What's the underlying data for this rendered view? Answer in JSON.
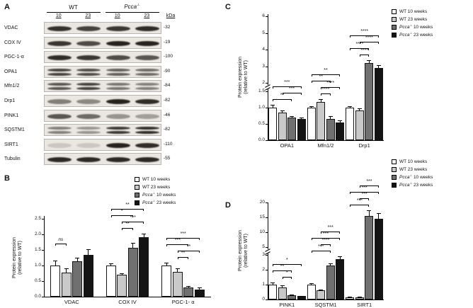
{
  "panels": {
    "a_label": "A",
    "b_label": "B",
    "c_label": "C",
    "d_label": "D"
  },
  "colors": {
    "series": [
      "#ffffff",
      "#c9c9c9",
      "#707070",
      "#141414"
    ],
    "axis": "#000000",
    "band": "#1c1813",
    "blot_bg": "#eae7e2",
    "blot_border": "#b9b4ac"
  },
  "legend_items": [
    {
      "italic": "",
      "sup": "",
      "text": "WT 10 weeks",
      "color": "#ffffff"
    },
    {
      "italic": "",
      "sup": "",
      "text": "WT 23 weeks",
      "color": "#c9c9c9"
    },
    {
      "italic": "Pcca",
      "sup": "-/-",
      "text": " 10 weeks",
      "color": "#707070"
    },
    {
      "italic": "Pcca",
      "sup": "-/-",
      "text": " 23 weeks",
      "color": "#141414"
    }
  ],
  "western_blot": {
    "group1": "WT",
    "group2_name": "Pcca",
    "group2_sup": "-/-",
    "lane_labels": [
      "10",
      "23",
      "10",
      "23"
    ],
    "kda_header": "kDa",
    "rows": [
      {
        "protein": "VDAC",
        "kda": "-32",
        "pattern": "single",
        "bands": [
          0.88,
          0.8,
          0.85,
          0.9
        ]
      },
      {
        "protein": "COX IV",
        "kda": "-19",
        "pattern": "single",
        "bands": [
          0.85,
          0.75,
          0.95,
          0.95
        ]
      },
      {
        "protein": "PGC-1-α",
        "kda": "-100",
        "pattern": "single",
        "bands": [
          0.9,
          0.85,
          0.75,
          0.7
        ]
      },
      {
        "protein": "OPA1",
        "kda": "-90",
        "pattern": "double",
        "bands": [
          0.8,
          0.75,
          0.65,
          0.6
        ]
      },
      {
        "protein": "Mfn1/2",
        "kda": "-84",
        "pattern": "double",
        "bands": [
          0.7,
          0.8,
          0.55,
          0.5
        ]
      },
      {
        "protein": "Drp1",
        "kda": "-82",
        "pattern": "single",
        "bands": [
          0.5,
          0.45,
          0.95,
          0.9
        ]
      },
      {
        "protein": "PINK1",
        "kda": "-46",
        "pattern": "single",
        "bands": [
          0.7,
          0.6,
          0.4,
          0.35
        ]
      },
      {
        "protein": "SQSTM1",
        "kda": "-82",
        "pattern": "double",
        "bands": [
          0.5,
          0.4,
          0.85,
          0.9
        ]
      },
      {
        "protein": "SIRT1",
        "kda": "-110",
        "pattern": "single",
        "bands": [
          0.15,
          0.15,
          0.95,
          0.9
        ]
      },
      {
        "protein": "Tubulin",
        "kda": "-55",
        "pattern": "single",
        "bands": [
          0.92,
          0.92,
          0.92,
          0.92
        ]
      }
    ]
  },
  "chart_data": [
    {
      "id": "B",
      "type": "bar",
      "ylabel_line1": "Protein expression",
      "ylabel_line2": "(relative to WT)",
      "categories": [
        "VDAC",
        "COX IV",
        "PGC-1- α"
      ],
      "ylim": [
        0,
        2.5
      ],
      "axis_break": null,
      "yticks": [
        {
          "v": 0,
          "label": "0.0"
        },
        {
          "v": 0.5,
          "label": "0.5"
        },
        {
          "v": 1,
          "label": "1.0"
        },
        {
          "v": 1.5,
          "label": "1.5"
        },
        {
          "v": 2,
          "label": "2.0"
        },
        {
          "v": 2.5,
          "label": "2.5"
        }
      ],
      "series": [
        {
          "name": "WT 10 weeks",
          "values": [
            1.0,
            1.0,
            1.0
          ],
          "errors": [
            0.15,
            0.06,
            0.1
          ]
        },
        {
          "name": "WT 23 weeks",
          "values": [
            0.78,
            0.7,
            0.8
          ],
          "errors": [
            0.12,
            0.05,
            0.1
          ]
        },
        {
          "name": "Pcca-/- 10 weeks",
          "values": [
            1.13,
            1.57,
            0.3
          ],
          "errors": [
            0.12,
            0.15,
            0.05
          ]
        },
        {
          "name": "Pcca-/- 23 weeks",
          "values": [
            1.33,
            1.9,
            0.22
          ],
          "errors": [
            0.2,
            0.13,
            0.08
          ]
        }
      ],
      "annotations": [
        {
          "cat": 0,
          "a": 0,
          "b": 1,
          "label": "ns",
          "level": 0
        },
        {
          "cat": 1,
          "a": 1,
          "b": 2,
          "label": "**",
          "level": 0
        },
        {
          "cat": 1,
          "a": 1,
          "b": 3,
          "label": "***",
          "level": 1
        },
        {
          "cat": 1,
          "a": 0,
          "b": 2,
          "label": "*",
          "level": 2
        },
        {
          "cat": 1,
          "a": 0,
          "b": 3,
          "label": "**",
          "level": 3
        },
        {
          "cat": 2,
          "a": 1,
          "b": 2,
          "label": "**",
          "level": 0
        },
        {
          "cat": 2,
          "a": 1,
          "b": 3,
          "label": "**",
          "level": 1
        },
        {
          "cat": 2,
          "a": 0,
          "b": 2,
          "label": "***",
          "level": 2
        },
        {
          "cat": 2,
          "a": 0,
          "b": 3,
          "label": "***",
          "level": 3
        }
      ]
    },
    {
      "id": "C",
      "type": "bar",
      "ylabel_line1": "Protein expression",
      "ylabel_line2": "(relative to WT)",
      "categories": [
        "OPA1",
        "Mfn1/2",
        "Drp1"
      ],
      "ylim": [
        0,
        6
      ],
      "axis_break": {
        "from": 1.5,
        "to": 2
      },
      "yticks": [
        {
          "v": 0,
          "label": "0.0"
        },
        {
          "v": 0.5,
          "label": "0.5"
        },
        {
          "v": 1,
          "label": "1.0"
        },
        {
          "v": 1.5,
          "label": "1.5"
        },
        {
          "v": 2,
          "label": "2"
        },
        {
          "v": 3,
          "label": "3"
        },
        {
          "v": 4,
          "label": "4"
        },
        {
          "v": 5,
          "label": "5"
        },
        {
          "v": 6,
          "label": "6"
        }
      ],
      "series": [
        {
          "name": "WT 10 weeks",
          "values": [
            1.0,
            1.0,
            1.0
          ],
          "errors": [
            0.08,
            0.05,
            0.05
          ]
        },
        {
          "name": "WT 23 weeks",
          "values": [
            0.85,
            1.18,
            0.92
          ],
          "errors": [
            0.07,
            0.08,
            0.06
          ]
        },
        {
          "name": "Pcca-/- 10 weeks",
          "values": [
            0.7,
            0.65,
            3.2
          ],
          "errors": [
            0.05,
            0.08,
            0.15
          ]
        },
        {
          "name": "Pcca-/- 23 weeks",
          "values": [
            0.65,
            0.55,
            2.9
          ],
          "errors": [
            0.05,
            0.05,
            0.15
          ]
        }
      ],
      "annotations": [
        {
          "cat": 0,
          "a": 0,
          "b": 2,
          "label": "**",
          "level": 0
        },
        {
          "cat": 0,
          "a": 1,
          "b": 3,
          "label": "***",
          "level": 1
        },
        {
          "cat": 0,
          "a": 0,
          "b": 3,
          "label": "***",
          "level": 2
        },
        {
          "cat": 1,
          "a": 1,
          "b": 2,
          "label": "****",
          "level": 0
        },
        {
          "cat": 1,
          "a": 1,
          "b": 3,
          "label": "****",
          "level": 1
        },
        {
          "cat": 1,
          "a": 0,
          "b": 2,
          "label": "**",
          "level": 2
        },
        {
          "cat": 1,
          "a": 0,
          "b": 3,
          "label": "**",
          "level": 3
        },
        {
          "cat": 2,
          "a": 1,
          "b": 2,
          "label": "****",
          "level": 0
        },
        {
          "cat": 2,
          "a": 0,
          "b": 2,
          "label": "****",
          "level": 1
        },
        {
          "cat": 2,
          "a": 1,
          "b": 3,
          "label": "****",
          "level": 2
        },
        {
          "cat": 2,
          "a": 0,
          "b": 3,
          "label": "****",
          "level": 3
        }
      ]
    },
    {
      "id": "D",
      "type": "bar",
      "ylabel_line1": "Protein expression",
      "ylabel_line2": "(relative to WT)",
      "categories": [
        "PINK1",
        "SQSTM1",
        "SIRT1"
      ],
      "ylim": [
        0,
        20
      ],
      "axis_break": {
        "from": 3,
        "to": 5
      },
      "yticks": [
        {
          "v": 0,
          "label": "0"
        },
        {
          "v": 1,
          "label": "1"
        },
        {
          "v": 2,
          "label": "2"
        },
        {
          "v": 3,
          "label": "3"
        },
        {
          "v": 5,
          "label": "5"
        },
        {
          "v": 10,
          "label": "10"
        },
        {
          "v": 15,
          "label": "15"
        },
        {
          "v": 20,
          "label": "20"
        }
      ],
      "series": [
        {
          "name": "WT 10 weeks",
          "values": [
            1.0,
            1.0,
            0.15
          ],
          "errors": [
            0.15,
            0.08,
            0.05
          ]
        },
        {
          "name": "WT 23 weeks",
          "values": [
            0.82,
            0.62,
            0.15
          ],
          "errors": [
            0.15,
            0.05,
            0.05
          ]
        },
        {
          "name": "Pcca-/- 10 weeks",
          "values": [
            0.3,
            2.3,
            15.5
          ],
          "errors": [
            0.05,
            0.15,
            2.0
          ]
        },
        {
          "name": "Pcca-/- 23 weeks",
          "values": [
            0.22,
            2.7,
            14.5
          ],
          "errors": [
            0.04,
            0.2,
            2.0
          ]
        }
      ],
      "annotations": [
        {
          "cat": 0,
          "a": 1,
          "b": 2,
          "label": "*",
          "level": 0
        },
        {
          "cat": 0,
          "a": 0,
          "b": 2,
          "label": "**",
          "level": 1
        },
        {
          "cat": 0,
          "a": 0,
          "b": 3,
          "label": "*",
          "level": 2
        },
        {
          "cat": 1,
          "a": 0,
          "b": 2,
          "label": "***",
          "level": 0
        },
        {
          "cat": 1,
          "a": 1,
          "b": 2,
          "label": "****",
          "level": 1
        },
        {
          "cat": 1,
          "a": 0,
          "b": 3,
          "label": "***",
          "level": 2
        },
        {
          "cat": 1,
          "a": 1,
          "b": 3,
          "label": "***",
          "level": 3
        },
        {
          "cat": 2,
          "a": 0,
          "b": 2,
          "label": "***",
          "level": 0
        },
        {
          "cat": 2,
          "a": 1,
          "b": 2,
          "label": "***",
          "level": 1
        },
        {
          "cat": 2,
          "a": 0,
          "b": 3,
          "label": "***",
          "level": 2
        },
        {
          "cat": 2,
          "a": 1,
          "b": 3,
          "label": "***",
          "level": 3
        }
      ]
    }
  ]
}
